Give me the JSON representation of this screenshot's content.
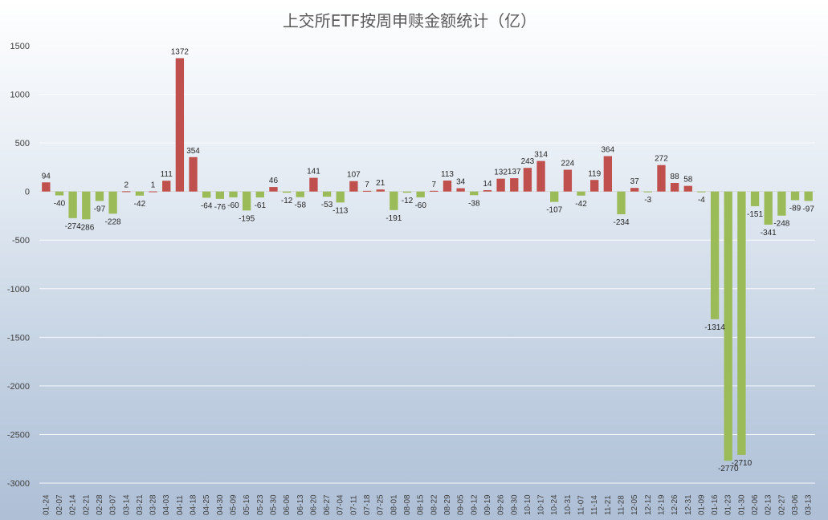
{
  "chart_data": {
    "type": "bar",
    "title": "上交所ETF按周申赎金额统计（亿）",
    "xlabel": "",
    "ylabel": "",
    "ylim": [
      -3000,
      1500
    ],
    "yticks": [
      1500,
      1000,
      500,
      0,
      -500,
      -1000,
      -1500,
      -2000,
      -2500,
      -3000
    ],
    "grid": true,
    "legend": "none",
    "colors": {
      "positive": "#c0504d",
      "negative": "#9bbb59"
    },
    "categories": [
      "01-24",
      "02-07",
      "02-14",
      "02-21",
      "02-28",
      "03-07",
      "03-14",
      "03-21",
      "03-28",
      "04-03",
      "04-11",
      "04-18",
      "04-25",
      "04-30",
      "05-09",
      "05-16",
      "05-23",
      "05-30",
      "06-06",
      "06-13",
      "06-20",
      "06-27",
      "07-04",
      "07-11",
      "07-18",
      "07-25",
      "08-01",
      "08-08",
      "08-15",
      "08-22",
      "08-29",
      "09-05",
      "09-12",
      "09-19",
      "09-26",
      "09-30",
      "10-10",
      "10-17",
      "10-24",
      "10-31",
      "11-07",
      "11-14",
      "11-21",
      "11-28",
      "12-05",
      "12-12",
      "12-19",
      "12-26",
      "12-31",
      "01-09",
      "01-16",
      "01-23",
      "01-30",
      "02-06",
      "02-13",
      "02-27",
      "03-06",
      "03-13"
    ],
    "values": [
      94,
      -40,
      -274,
      -286,
      -97,
      -228,
      2,
      -42,
      1,
      111,
      1372,
      354,
      -64,
      -76,
      -60,
      -195,
      -61,
      46,
      -12,
      -58,
      141,
      -53,
      -113,
      107,
      7,
      21,
      -191,
      -12,
      -60,
      7,
      113,
      34,
      -38,
      14,
      132,
      137,
      243,
      314,
      -107,
      224,
      -42,
      119,
      364,
      -234,
      37,
      -3,
      272,
      88,
      58,
      -4,
      -1314,
      -2770,
      -2710,
      -151,
      -341,
      -248,
      -89,
      -97
    ]
  }
}
